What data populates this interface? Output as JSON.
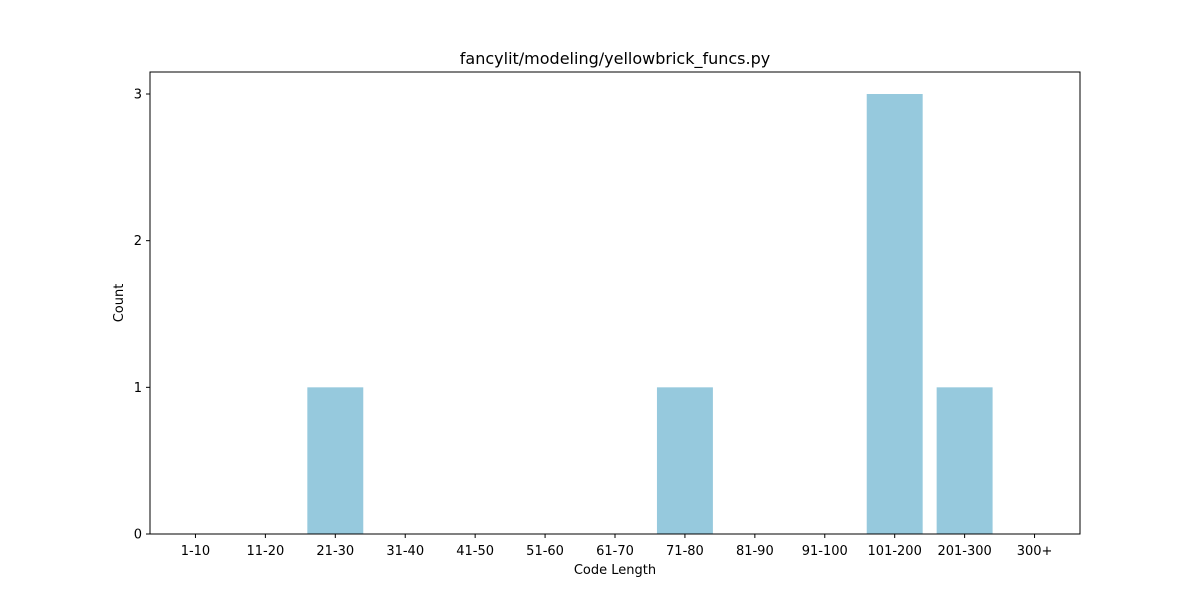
{
  "chart_data": {
    "type": "bar",
    "title": "fancylit/modeling/yellowbrick_funcs.py",
    "xlabel": "Code Length",
    "ylabel": "Count",
    "categories": [
      "1-10",
      "11-20",
      "21-30",
      "31-40",
      "41-50",
      "51-60",
      "61-70",
      "71-80",
      "81-90",
      "91-100",
      "101-200",
      "201-300",
      "300+"
    ],
    "values": [
      0,
      0,
      1,
      0,
      0,
      0,
      0,
      1,
      0,
      0,
      3,
      1,
      0
    ],
    "ylim": [
      0,
      3.15
    ],
    "yticks": [
      0,
      1,
      2,
      3
    ],
    "grid": false,
    "bar_color": "#96c9dd"
  }
}
